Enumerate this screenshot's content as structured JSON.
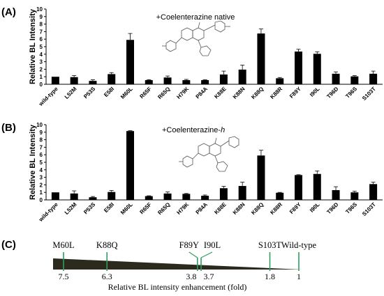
{
  "panels": [
    {
      "label": "(A)",
      "ylabel": "Relative BL Intensity",
      "annotation": "+Coelenterazine native",
      "molecule_icon": "coelenterazine-structure-icon"
    },
    {
      "label": "(B)",
      "ylabel": "Relative BL Intensity",
      "annotation_prefix": "+Coelenterazine-",
      "annotation_suffix": "h",
      "molecule_icon": "coelenterazine-h-structure-icon"
    }
  ],
  "chart_data": [
    {
      "type": "bar",
      "panel": "(A)",
      "ylabel": "Relative BL Intensity",
      "ylim": [
        0,
        10
      ],
      "yticks": [
        "0",
        "1",
        "2",
        "3",
        "4",
        "5",
        "6",
        "7",
        "8",
        "9",
        "10"
      ],
      "categories": [
        "wild-type",
        "L52M",
        "P53S",
        "E58I",
        "M60L",
        "R65F",
        "R65Q",
        "H79K",
        "P84A",
        "K88E",
        "K88N",
        "K88Q",
        "K88R",
        "F89Y",
        "I90L",
        "T96D",
        "T96S",
        "S103T"
      ],
      "values": [
        1.0,
        0.95,
        0.45,
        1.35,
        5.9,
        0.55,
        0.9,
        0.55,
        0.55,
        1.3,
        1.95,
        6.75,
        0.8,
        4.35,
        4.05,
        1.4,
        1.05,
        1.4
      ],
      "errors": [
        0.0,
        0.2,
        0.15,
        0.2,
        0.85,
        0.05,
        0.2,
        0.1,
        0.05,
        0.45,
        0.6,
        0.6,
        0.1,
        0.3,
        0.25,
        0.25,
        0.1,
        0.35
      ],
      "annotation": "+Coelenterazine native"
    },
    {
      "type": "bar",
      "panel": "(B)",
      "ylabel": "Relative BL Intensity",
      "ylim": [
        0,
        10
      ],
      "yticks": [
        "0",
        "1",
        "2",
        "3",
        "4",
        "5",
        "6",
        "7",
        "8",
        "9",
        "10"
      ],
      "categories": [
        "wild-type",
        "L52M",
        "P53S",
        "E58I",
        "M60L",
        "R65F",
        "R65Q",
        "H79K",
        "P84A",
        "K88E",
        "K88N",
        "K88Q",
        "K88R",
        "F89Y",
        "I90L",
        "T96D",
        "T96S",
        "S103T"
      ],
      "values": [
        1.0,
        0.85,
        0.35,
        1.05,
        9.15,
        0.5,
        0.85,
        0.8,
        0.55,
        1.55,
        1.85,
        5.9,
        0.95,
        3.3,
        3.45,
        1.3,
        1.0,
        2.1
      ],
      "errors": [
        0.0,
        0.35,
        0.1,
        0.2,
        0.05,
        0.05,
        0.2,
        0.05,
        0.1,
        0.25,
        0.5,
        0.7,
        0.05,
        0.05,
        0.4,
        0.45,
        0.15,
        0.25
      ],
      "annotation": "+Coelenterazine-h"
    },
    {
      "type": "ranking",
      "panel": "(C)",
      "xlabel": "Relative BL intensity enhancement (fold)",
      "items": [
        {
          "label": "M60L",
          "value": 7.5,
          "value_label": "7.5"
        },
        {
          "label": "K88Q",
          "value": 6.3,
          "value_label": "6.3"
        },
        {
          "label": "F89Y",
          "value": 3.8,
          "value_label": "3.8"
        },
        {
          "label": "I90L",
          "value": 3.7,
          "value_label": "3.7"
        },
        {
          "label": "S103T",
          "value": 1.8,
          "value_label": "1.8"
        },
        {
          "label": "Wild-type",
          "value": 1.0,
          "value_label": "1"
        }
      ]
    }
  ],
  "panel_c": {
    "label": "(C)",
    "xlabel": "Relative BL intensity enhancement (fold)",
    "marker_color": "#2e9e5e",
    "wedge_color": "#2b2a1c"
  }
}
